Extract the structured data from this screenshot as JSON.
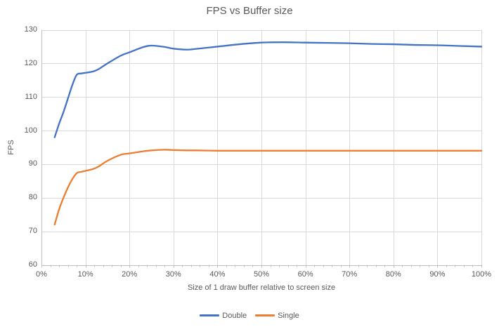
{
  "chart_data": {
    "type": "line",
    "title": "FPS vs Buffer size",
    "xlabel": "Size of 1 draw buffer relative to screen size",
    "ylabel": "FPS",
    "xlim": [
      0,
      100
    ],
    "ylim": [
      60,
      130
    ],
    "x_tick_labels": [
      "0%",
      "10%",
      "20%",
      "30%",
      "40%",
      "50%",
      "60%",
      "70%",
      "80%",
      "90%",
      "100%"
    ],
    "y_tick_labels": [
      "60",
      "70",
      "80",
      "90",
      "100",
      "110",
      "120",
      "130"
    ],
    "x_minor_tick_step": 2,
    "grid": true,
    "smooth": true,
    "legend_position": "bottom",
    "x": [
      3,
      4,
      5,
      6,
      7,
      8,
      9,
      10,
      11,
      12,
      13,
      15,
      18,
      20,
      23,
      25,
      28,
      30,
      33,
      35,
      40,
      45,
      50,
      55,
      60,
      65,
      70,
      75,
      80,
      85,
      90,
      95,
      100
    ],
    "series": [
      {
        "name": "Double",
        "color": "#4472C4",
        "values": [
          98,
          102,
          105.5,
          109.5,
          113.5,
          116.6,
          117,
          117.2,
          117.4,
          117.7,
          118.3,
          120,
          122.3,
          123.3,
          124.8,
          125.3,
          124.9,
          124.4,
          124.1,
          124.3,
          125,
          125.7,
          126.2,
          126.3,
          126.2,
          126.1,
          126,
          125.8,
          125.7,
          125.5,
          125.4,
          125.2,
          125
        ]
      },
      {
        "name": "Single",
        "color": "#ED7D31",
        "values": [
          72,
          76.5,
          80,
          83,
          85.5,
          87.3,
          87.7,
          88,
          88.3,
          88.7,
          89.3,
          91,
          92.8,
          93.2,
          93.8,
          94.1,
          94.3,
          94.2,
          94.1,
          94.1,
          94,
          94,
          94,
          94,
          94,
          94,
          94,
          94,
          94,
          94,
          94,
          94,
          94
        ]
      }
    ],
    "colors": {
      "title_text": "#595959",
      "axis_text": "#595959",
      "gridline": "#D9D9D9",
      "axis_line": "#BFBFBF",
      "background": "#FFFFFF"
    }
  }
}
